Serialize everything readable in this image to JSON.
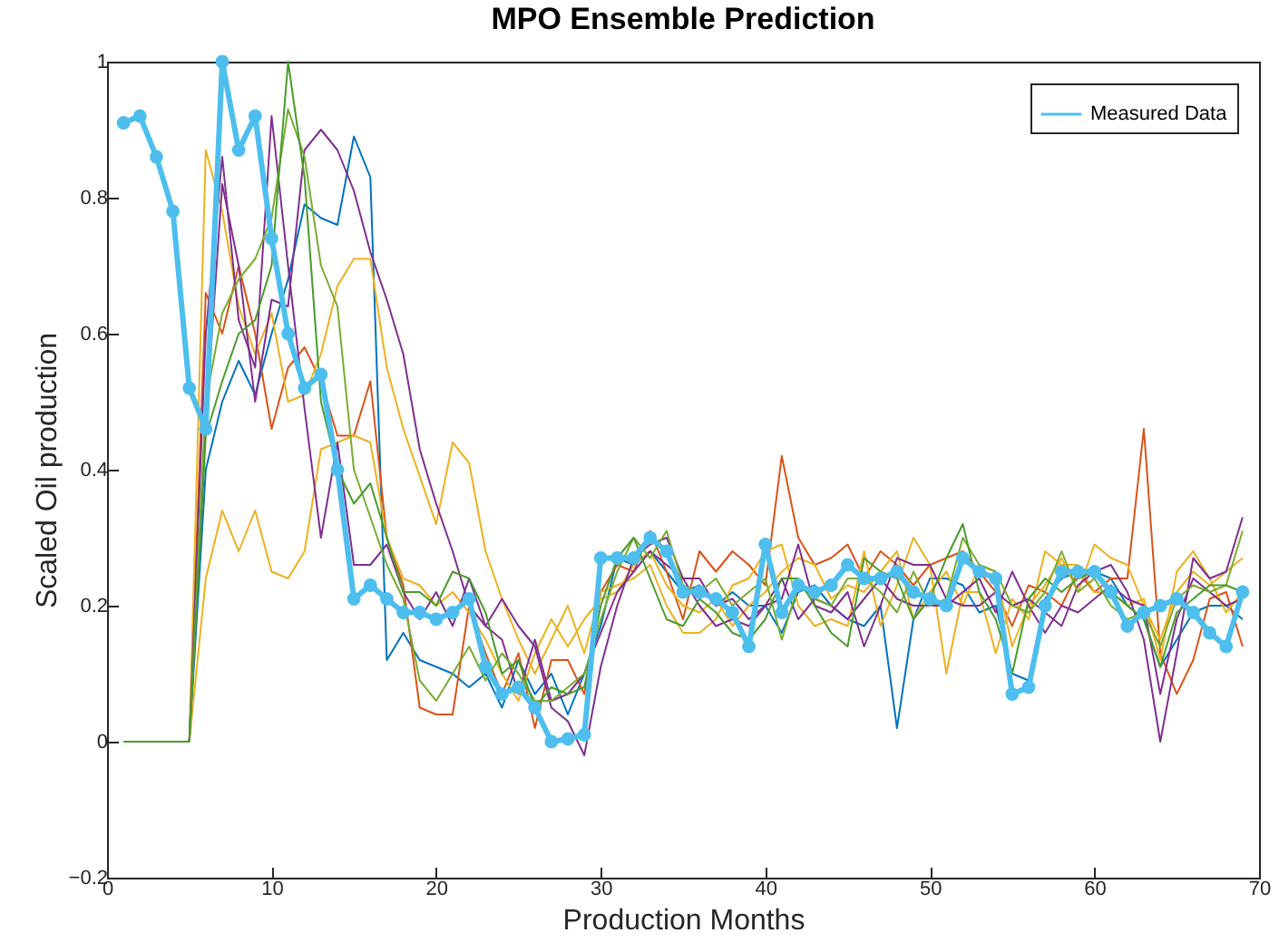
{
  "chart_data": {
    "type": "line",
    "title": "MPO Ensemble Prediction",
    "xlabel": "Production Months",
    "ylabel": "Scaled Oil production",
    "x": [
      1,
      2,
      3,
      4,
      5,
      6,
      7,
      8,
      9,
      10,
      11,
      12,
      13,
      14,
      15,
      16,
      17,
      18,
      19,
      20,
      21,
      22,
      23,
      24,
      25,
      26,
      27,
      28,
      29,
      30,
      31,
      32,
      33,
      34,
      35,
      36,
      37,
      38,
      39,
      40,
      41,
      42,
      43,
      44,
      45,
      46,
      47,
      48,
      49,
      50,
      51,
      52,
      53,
      54,
      55,
      56,
      57,
      58,
      59,
      60,
      61,
      62,
      63,
      64,
      65,
      66,
      67,
      68,
      69
    ],
    "xlim": [
      0,
      70
    ],
    "xticks": [
      0,
      10,
      20,
      30,
      40,
      50,
      60,
      70
    ],
    "ylim": [
      -0.2,
      1
    ],
    "yticks": [
      -0.2,
      0,
      0.2,
      0.4,
      0.6,
      0.8,
      1
    ],
    "grid": false,
    "legend": "top right",
    "line_style": "solid",
    "series": [
      {
        "color": "#0072bd",
        "values": [
          null,
          null,
          null,
          null,
          0,
          0.4,
          0.5,
          0.56,
          0.51,
          0.6,
          0.68,
          0.79,
          0.77,
          0.76,
          0.89,
          0.83,
          0.12,
          0.16,
          0.12,
          0.11,
          0.1,
          0.08,
          0.1,
          0.05,
          0.12,
          0.07,
          0.1,
          0.04,
          0.1,
          0.17,
          0.27,
          0.26,
          0.28,
          0.25,
          0.22,
          0.23,
          0.2,
          0.22,
          0.2,
          0.2,
          0.16,
          0.22,
          0.23,
          0.2,
          0.18,
          0.17,
          0.2,
          0.02,
          0.18,
          0.24,
          0.24,
          0.23,
          0.19,
          0.2,
          0.1,
          0.09,
          0.21,
          0.24,
          0.25,
          0.25,
          0.24,
          0.2,
          0.18,
          0.11,
          0.15,
          0.19,
          0.2,
          0.2,
          0.18
        ]
      },
      {
        "color": "#d95319",
        "values": [
          null,
          null,
          null,
          null,
          0,
          0.66,
          0.6,
          0.7,
          0.6,
          0.46,
          0.55,
          0.58,
          0.53,
          0.45,
          0.45,
          0.53,
          0.3,
          0.23,
          0.05,
          0.04,
          0.04,
          0.2,
          0.13,
          0.07,
          0.13,
          0.02,
          0.12,
          0.12,
          0.07,
          0.22,
          0.26,
          0.25,
          0.31,
          0.25,
          0.18,
          0.28,
          0.25,
          0.28,
          0.26,
          0.23,
          0.42,
          0.3,
          0.26,
          0.27,
          0.29,
          0.24,
          0.28,
          0.26,
          0.23,
          0.26,
          0.27,
          0.28,
          0.25,
          0.22,
          0.17,
          0.23,
          0.22,
          0.2,
          0.25,
          0.22,
          0.24,
          0.24,
          0.46,
          0.13,
          0.07,
          0.12,
          0.21,
          0.22,
          0.14
        ]
      },
      {
        "color": "#edb120",
        "values": [
          null,
          null,
          null,
          null,
          0,
          0.87,
          0.78,
          0.64,
          0.57,
          0.63,
          0.5,
          0.51,
          0.57,
          0.67,
          0.71,
          0.71,
          0.55,
          0.46,
          0.39,
          0.32,
          0.44,
          0.41,
          0.28,
          0.21,
          0.15,
          0.1,
          0.15,
          0.2,
          0.13,
          0.22,
          0.23,
          0.24,
          0.26,
          0.2,
          0.16,
          0.16,
          0.18,
          0.23,
          0.24,
          0.28,
          0.29,
          0.2,
          0.17,
          0.18,
          0.17,
          0.28,
          0.17,
          0.23,
          0.3,
          0.26,
          0.1,
          0.22,
          0.22,
          0.13,
          0.21,
          0.18,
          0.28,
          0.26,
          0.26,
          0.22,
          0.22,
          0.2,
          0.21,
          0.12,
          0.25,
          0.28,
          0.24,
          0.19,
          0.22
        ]
      },
      {
        "color": "#edb120",
        "values": [
          null,
          null,
          null,
          null,
          0,
          0.24,
          0.34,
          0.28,
          0.34,
          0.25,
          0.24,
          0.28,
          0.43,
          0.44,
          0.45,
          0.44,
          0.3,
          0.24,
          0.23,
          0.2,
          0.22,
          0.19,
          0.15,
          0.1,
          0.06,
          0.13,
          0.18,
          0.14,
          0.18,
          0.21,
          0.22,
          0.26,
          0.28,
          0.23,
          0.2,
          0.19,
          0.21,
          0.17,
          0.2,
          0.22,
          0.25,
          0.27,
          0.26,
          0.21,
          0.23,
          0.22,
          0.25,
          0.28,
          0.18,
          0.22,
          0.25,
          0.2,
          0.26,
          0.25,
          0.14,
          0.2,
          0.23,
          0.27,
          0.22,
          0.29,
          0.27,
          0.26,
          0.2,
          0.15,
          0.22,
          0.25,
          0.23,
          0.25,
          0.27
        ]
      },
      {
        "color": "#7e2f8e",
        "values": [
          null,
          null,
          null,
          null,
          0,
          0.47,
          0.82,
          0.7,
          0.5,
          0.65,
          0.64,
          0.87,
          0.9,
          0.87,
          0.81,
          0.72,
          0.65,
          0.57,
          0.43,
          0.35,
          0.28,
          0.2,
          0.17,
          0.21,
          0.17,
          0.14,
          0.05,
          0.03,
          -0.02,
          0.11,
          0.2,
          0.27,
          0.29,
          0.3,
          0.24,
          0.24,
          0.2,
          0.21,
          0.18,
          0.2,
          0.21,
          0.29,
          0.2,
          0.19,
          0.22,
          0.14,
          0.2,
          0.27,
          0.26,
          0.26,
          0.21,
          0.2,
          0.2,
          0.22,
          0.2,
          0.21,
          0.19,
          0.17,
          0.23,
          0.25,
          0.26,
          0.22,
          0.15,
          0,
          0.13,
          0.27,
          0.24,
          0.25,
          0.33
        ]
      },
      {
        "color": "#7e2f8e",
        "values": [
          null,
          null,
          null,
          null,
          0,
          0.6,
          0.86,
          0.62,
          0.55,
          0.92,
          0.7,
          0.49,
          0.3,
          0.44,
          0.26,
          0.26,
          0.29,
          0.22,
          0.18,
          0.22,
          0.17,
          0.24,
          0.17,
          0.15,
          0.07,
          0.15,
          0.06,
          0.07,
          0.1,
          0.16,
          0.22,
          0.25,
          0.28,
          0.26,
          0.24,
          0.2,
          0.17,
          0.18,
          0.17,
          0.2,
          0.24,
          0.18,
          0.21,
          0.2,
          0.18,
          0.21,
          0.24,
          0.21,
          0.2,
          0.2,
          0.2,
          0.22,
          0.24,
          0.19,
          0.25,
          0.2,
          0.16,
          0.2,
          0.19,
          0.21,
          0.23,
          0.21,
          0.2,
          0.07,
          0.18,
          0.24,
          0.22,
          0.2,
          0.21
        ]
      },
      {
        "color": "#77ac30",
        "values": [
          null,
          null,
          null,
          null,
          0,
          0.5,
          0.63,
          0.68,
          0.71,
          0.77,
          0.93,
          0.86,
          0.7,
          0.64,
          0.4,
          0.33,
          0.26,
          0.21,
          0.09,
          0.06,
          0.1,
          0.14,
          0.09,
          0.13,
          0.1,
          0.06,
          0.06,
          0.08,
          0.1,
          0.18,
          0.25,
          0.3,
          0.27,
          0.31,
          0.23,
          0.22,
          0.24,
          0.2,
          0.22,
          0.24,
          0.15,
          0.23,
          0.21,
          0.2,
          0.24,
          0.24,
          0.22,
          0.19,
          0.25,
          0.2,
          0.21,
          0.3,
          0.26,
          0.25,
          0.2,
          0.19,
          0.22,
          0.28,
          0.22,
          0.24,
          0.2,
          0.18,
          0.19,
          0.14,
          0.21,
          0.23,
          0.22,
          0.23,
          0.31
        ]
      },
      {
        "color": "#4a9a2c",
        "values": [
          0,
          0,
          0,
          0,
          0,
          0.45,
          0.53,
          0.6,
          0.62,
          0.7,
          1,
          0.83,
          0.5,
          0.4,
          0.35,
          0.38,
          0.3,
          0.22,
          0.22,
          0.2,
          0.25,
          0.24,
          0.19,
          0.1,
          0.12,
          0.05,
          0.08,
          0.07,
          0.08,
          0.2,
          0.27,
          0.3,
          0.24,
          0.18,
          0.17,
          0.21,
          0.19,
          0.16,
          0.15,
          0.18,
          0.24,
          0.24,
          0.2,
          0.16,
          0.14,
          0.27,
          0.25,
          0.24,
          0.18,
          0.21,
          0.27,
          0.32,
          0.22,
          0.18,
          0.1,
          0.21,
          0.24,
          0.22,
          0.24,
          0.25,
          0.22,
          0.2,
          0.18,
          0.11,
          0.19,
          0.21,
          0.23,
          0.23,
          0.22
        ]
      },
      {
        "name": "Measured Data",
        "color": "#4dbeee",
        "marker": "circle",
        "values": [
          0.91,
          0.92,
          0.86,
          0.78,
          0.52,
          0.46,
          1,
          0.87,
          0.92,
          0.74,
          0.6,
          0.52,
          0.54,
          0.4,
          0.21,
          0.23,
          0.21,
          0.19,
          0.19,
          0.18,
          0.19,
          0.21,
          0.11,
          0.07,
          0.08,
          0.05,
          0,
          0.004,
          0.01,
          0.27,
          0.27,
          0.27,
          0.3,
          0.28,
          0.22,
          0.22,
          0.21,
          0.19,
          0.14,
          0.29,
          0.19,
          0.23,
          0.22,
          0.23,
          0.26,
          0.24,
          0.24,
          0.25,
          0.22,
          0.21,
          0.2,
          0.27,
          0.25,
          0.24,
          0.07,
          0.08,
          0.2,
          0.25,
          0.25,
          0.25,
          0.22,
          0.17,
          0.19,
          0.2,
          0.21,
          0.19,
          0.16,
          0.14,
          0.22
        ]
      }
    ]
  }
}
